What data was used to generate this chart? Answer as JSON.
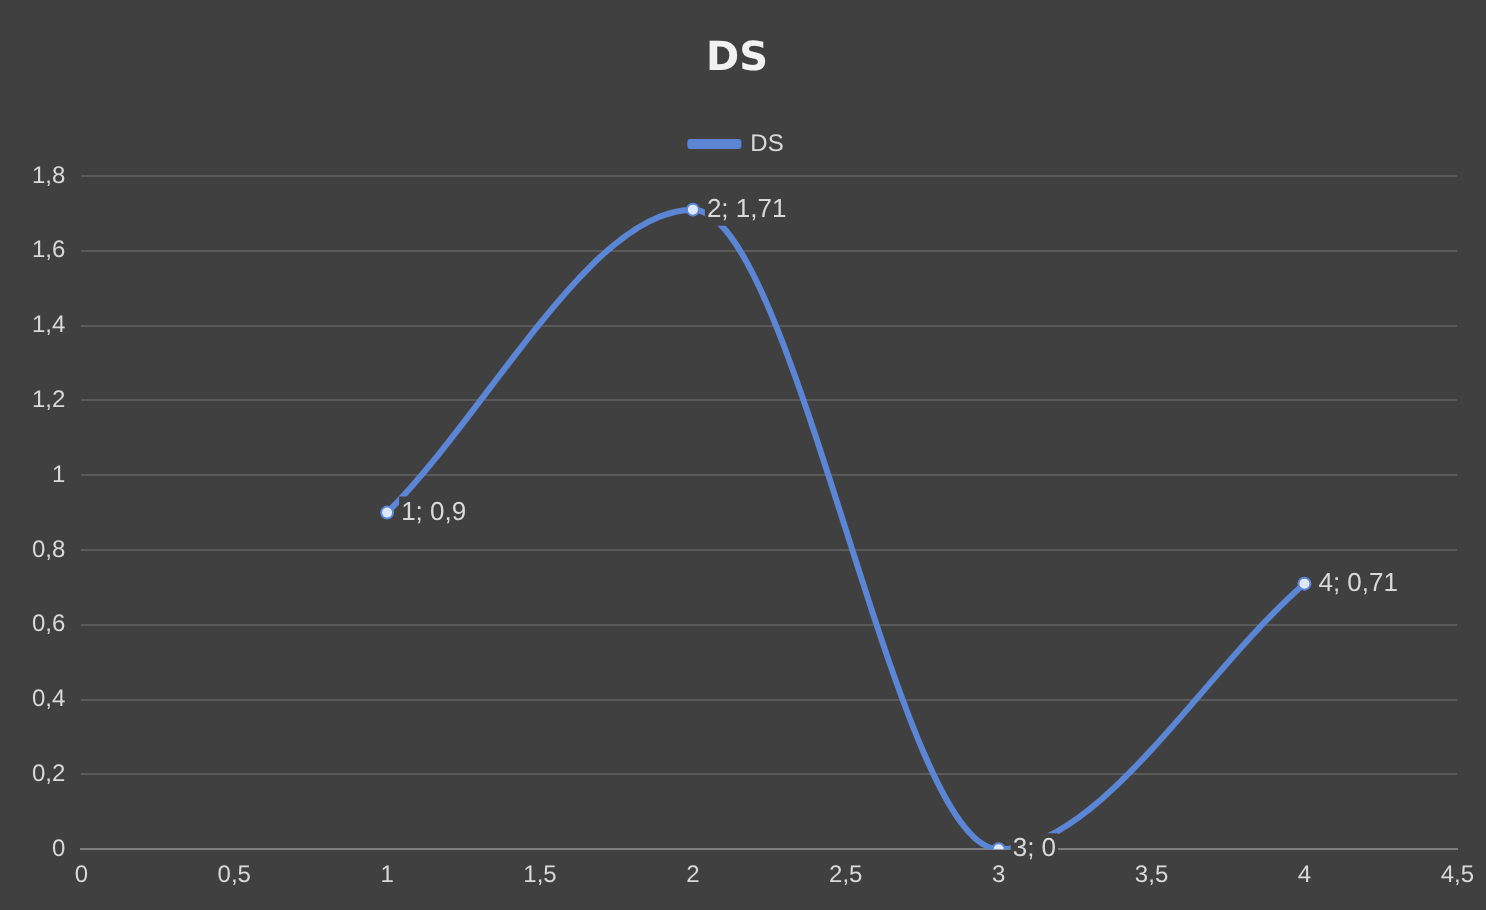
{
  "chart_data": {
    "type": "line",
    "title": "DS",
    "x": [
      1,
      2,
      3,
      4
    ],
    "series": [
      {
        "name": "DS",
        "color": "#5b86d6",
        "values": [
          0.9,
          1.71,
          0,
          0.71
        ],
        "value_labels": [
          "1; 0,9",
          "2; 1,71",
          "3; 0",
          "4; 0,71"
        ]
      }
    ],
    "xlim": [
      0,
      4.5
    ],
    "xticks": [
      0,
      {
        "value": 0.5,
        "label": "0,5"
      },
      1,
      {
        "value": 1.5,
        "label": "1,5"
      },
      2,
      {
        "value": 2.5,
        "label": "2,5"
      },
      3,
      {
        "value": 3.5,
        "label": "3,5"
      },
      4,
      {
        "value": 4.5,
        "label": "4,5"
      }
    ],
    "ylim": [
      0,
      1.8
    ],
    "yticks": [
      0,
      {
        "value": 0.2,
        "label": "0,2"
      },
      {
        "value": 0.4,
        "label": "0,4"
      },
      {
        "value": 0.6,
        "label": "0,6"
      },
      {
        "value": 0.8,
        "label": "0,8"
      },
      1,
      {
        "value": 1.2,
        "label": "1,2"
      },
      {
        "value": 1.4,
        "label": "1,4"
      },
      {
        "value": 1.6,
        "label": "1,6"
      },
      {
        "value": 1.8,
        "label": "1,8"
      }
    ],
    "grid": "y",
    "legend": "top",
    "marker": "circle",
    "line_style": "solid"
  }
}
